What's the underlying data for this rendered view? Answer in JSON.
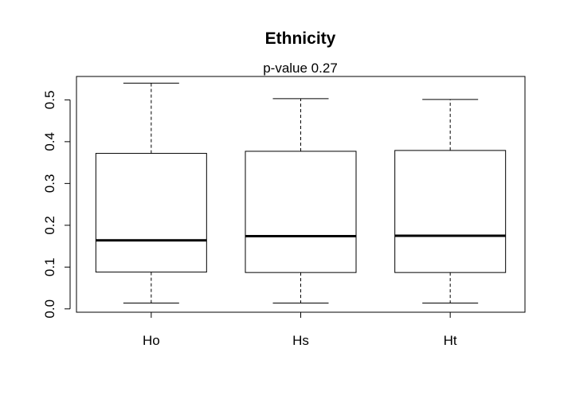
{
  "chart_data": {
    "type": "boxplot",
    "title": "Ethnicity",
    "subtitle": "p-value 0.27",
    "xlabel": "",
    "ylabel": "",
    "categories": [
      "Ho",
      "Hs",
      "Ht"
    ],
    "boxes": [
      {
        "category": "Ho",
        "min": 0.014,
        "q1": 0.088,
        "median": 0.164,
        "q3": 0.372,
        "max": 0.54
      },
      {
        "category": "Hs",
        "min": 0.014,
        "q1": 0.087,
        "median": 0.174,
        "q3": 0.377,
        "max": 0.503
      },
      {
        "category": "Ht",
        "min": 0.014,
        "q1": 0.087,
        "median": 0.175,
        "q3": 0.379,
        "max": 0.501
      }
    ],
    "yticks": [
      "0.0",
      "0.1",
      "0.2",
      "0.3",
      "0.4",
      "0.5"
    ],
    "ylim": [
      -0.008,
      0.556
    ],
    "grid": false,
    "legend": "none"
  }
}
